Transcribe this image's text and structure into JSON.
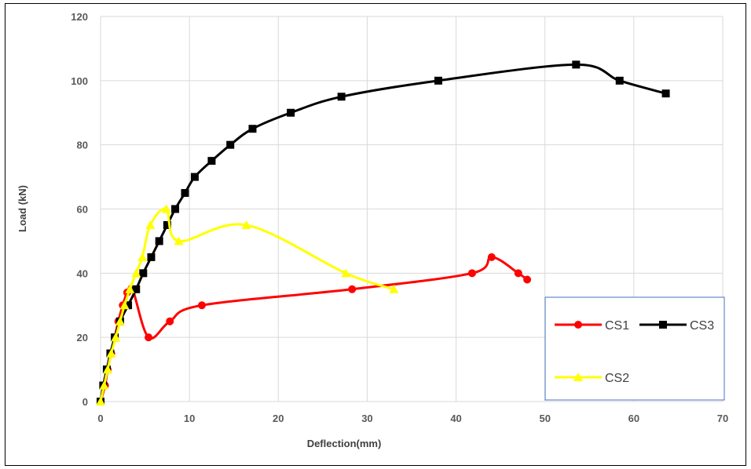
{
  "chart_data": {
    "type": "line",
    "title": "",
    "xlabel": "Deflection(mm)",
    "ylabel": "Load (kN)",
    "xlim": [
      0,
      70
    ],
    "ylim": [
      0,
      120
    ],
    "xticks": [
      0,
      10,
      20,
      30,
      40,
      50,
      60,
      70
    ],
    "yticks": [
      0,
      20,
      40,
      60,
      80,
      100,
      120
    ],
    "grid": true,
    "legend_position": "bottom-right",
    "series": [
      {
        "name": "CS1",
        "color": "#ff0000",
        "marker": "circle",
        "x": [
          0,
          0.5,
          0.8,
          1.2,
          1.6,
          2.0,
          2.5,
          3.0,
          3.6,
          5.4,
          7.8,
          11.4,
          28.3,
          41.8,
          44.0,
          47.0,
          48.0
        ],
        "y": [
          0,
          5,
          10,
          15,
          20,
          25,
          30,
          34,
          35,
          20,
          25,
          30,
          35,
          40,
          45,
          40,
          38
        ]
      },
      {
        "name": "CS3",
        "color": "#000000",
        "marker": "square",
        "x": [
          0,
          0.3,
          0.7,
          1.1,
          1.6,
          2.2,
          3.1,
          4.0,
          4.8,
          5.7,
          6.6,
          7.5,
          8.4,
          9.5,
          10.6,
          12.5,
          14.6,
          17.1,
          21.4,
          27.1,
          38.0,
          53.5,
          58.4,
          63.6
        ],
        "y": [
          0,
          5,
          10,
          15,
          20,
          25,
          30,
          35,
          40,
          45,
          50,
          55,
          60,
          65,
          70,
          75,
          80,
          85,
          90,
          95,
          100,
          105,
          100,
          96
        ]
      },
      {
        "name": "CS2",
        "color": "#ffff00",
        "marker": "triangle",
        "x": [
          0,
          0.4,
          0.8,
          1.2,
          1.7,
          2.2,
          2.7,
          3.3,
          4.0,
          4.7,
          5.6,
          7.4,
          8.8,
          16.4,
          27.6,
          33.0
        ],
        "y": [
          0,
          5,
          10,
          15,
          20,
          25,
          30,
          35,
          40,
          45,
          55,
          60,
          50,
          55,
          40,
          35
        ]
      }
    ]
  }
}
